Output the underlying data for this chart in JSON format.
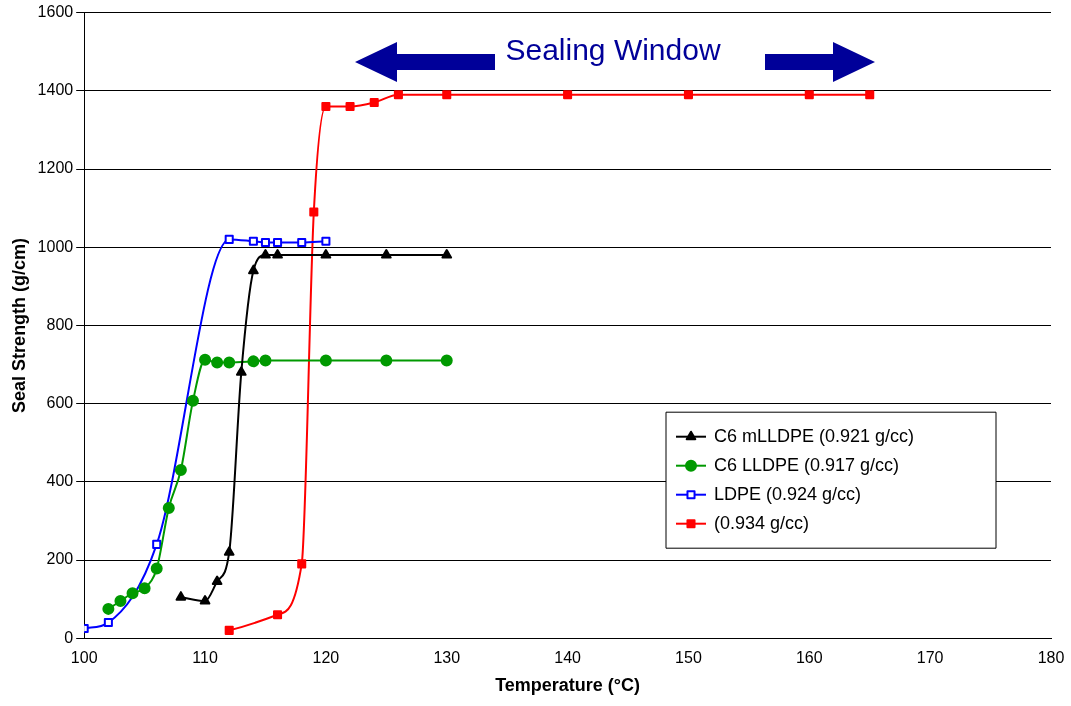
{
  "chart_data": {
    "type": "line",
    "xlabel": "Temperature (°C)",
    "ylabel": "Seal Strength (g/cm)",
    "xlim": [
      100,
      180
    ],
    "xticks": [
      100,
      110,
      120,
      130,
      140,
      150,
      160,
      170,
      180
    ],
    "ylim": [
      0,
      1600
    ],
    "yticks": [
      0,
      200,
      400,
      600,
      800,
      1000,
      1200,
      1400,
      1600
    ],
    "grid": "y",
    "legend": "bottom right",
    "annotations": [
      "Sealing Window"
    ],
    "series": [
      {
        "name": "C6 mLLDPE (0.921 g/cc)",
        "color": "#000000",
        "marker": "triangle",
        "x": [
          108,
          110,
          111,
          112,
          113,
          114,
          115,
          116,
          120,
          125,
          130
        ],
        "values": [
          105,
          95,
          145,
          220,
          680,
          940,
          980,
          980,
          980,
          980,
          980
        ]
      },
      {
        "name": "C6 LLDPE (0.917 g/cc)",
        "color": "#009900",
        "marker": "circle",
        "x": [
          102,
          103,
          104,
          105,
          106,
          107,
          108,
          109,
          110,
          111,
          112,
          114,
          115,
          120,
          125,
          130
        ],
        "values": [
          75,
          95,
          115,
          128,
          178,
          333,
          430,
          607,
          712,
          705,
          705,
          708,
          710,
          710,
          710,
          710
        ]
      },
      {
        "name": "LDPE (0.924 g/cc)",
        "color": "#0000ff",
        "marker": "square",
        "x": [
          100,
          102,
          106,
          112,
          114,
          115,
          116,
          118,
          120
        ],
        "values": [
          25,
          40,
          240,
          1020,
          1015,
          1012,
          1012,
          1012,
          1015
        ]
      },
      {
        "name": "(0.934 g/cc)",
        "color": "#ff0000",
        "marker": "square",
        "x": [
          112,
          116,
          118,
          119,
          120,
          122,
          124,
          126,
          130,
          140,
          150,
          160,
          165
        ],
        "values": [
          20,
          60,
          190,
          1090,
          1360,
          1360,
          1370,
          1390,
          1390,
          1390,
          1390,
          1390,
          1390
        ]
      }
    ]
  }
}
